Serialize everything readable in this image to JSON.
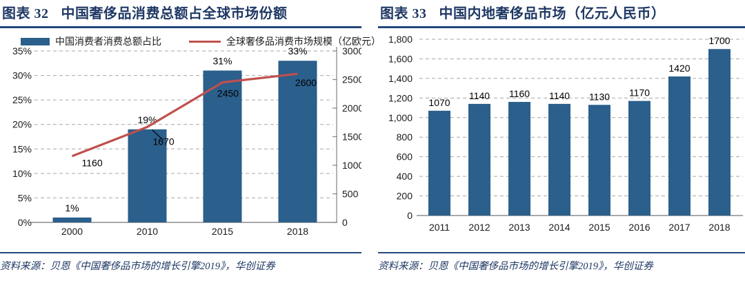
{
  "colors": {
    "title_navy": "#1F3864",
    "rule_blue": "#24477C",
    "bar_blue": "#2B5F8C",
    "line_red": "#C0504D",
    "grid_gray": "#A6A6A6",
    "axis_gray": "#8C8C8C"
  },
  "panels": [
    {
      "figure_label": "图表 32",
      "title": "中国奢侈品消费总额占全球市场份额",
      "source": "资料来源：贝恩《中国奢侈品市场的增长引擎2019》，华创证券"
    },
    {
      "figure_label": "图表 33",
      "title": "中国内地奢侈品市场（亿元人民币）",
      "source": "资料来源：贝恩《中国奢侈品市场的增长引擎2019》，华创证券"
    }
  ],
  "chart_data": [
    {
      "type": "bar",
      "subtype": "combo-bar-line-dual-axis",
      "title": "中国奢侈品消费总额占全球市场份额",
      "categories": [
        "2000",
        "2010",
        "2015",
        "2018"
      ],
      "series": [
        {
          "name": "中国消费者消费总额占比",
          "type": "bar",
          "axis": "left",
          "color": "#2B5F8C",
          "values": [
            1,
            19,
            31,
            33
          ],
          "labels": [
            "1%",
            "19%",
            "31%",
            "33%"
          ]
        },
        {
          "name": "全球奢侈品消费市场规模（亿欧元）",
          "type": "line",
          "axis": "right",
          "color": "#C0504D",
          "values": [
            1160,
            1670,
            2450,
            2600
          ],
          "labels": [
            "1160",
            "1670",
            "2450",
            "2600"
          ]
        }
      ],
      "left_axis": {
        "min": 0,
        "max": 35,
        "step": 5,
        "format": "percent"
      },
      "right_axis": {
        "min": 0,
        "max": 3000,
        "step": 500,
        "format": "plain"
      },
      "grid": "dashed-horizontal",
      "legend_position": "top"
    },
    {
      "type": "bar",
      "title": "中国内地奢侈品市场（亿元人民币）",
      "categories": [
        "2011",
        "2012",
        "2013",
        "2014",
        "2015",
        "2016",
        "2017",
        "2018"
      ],
      "series": [
        {
          "name": "中国内地奢侈品市场",
          "type": "bar",
          "color": "#2B5F8C",
          "values": [
            1070,
            1140,
            1160,
            1140,
            1130,
            1170,
            1420,
            1700
          ],
          "labels": [
            "1070",
            "1140",
            "1160",
            "1140",
            "1130",
            "1170",
            "1420",
            "1700"
          ]
        }
      ],
      "y_axis": {
        "min": 0,
        "max": 1800,
        "step": 200,
        "format": "thousands"
      },
      "grid": "dashed-horizontal",
      "legend_position": "none"
    }
  ]
}
